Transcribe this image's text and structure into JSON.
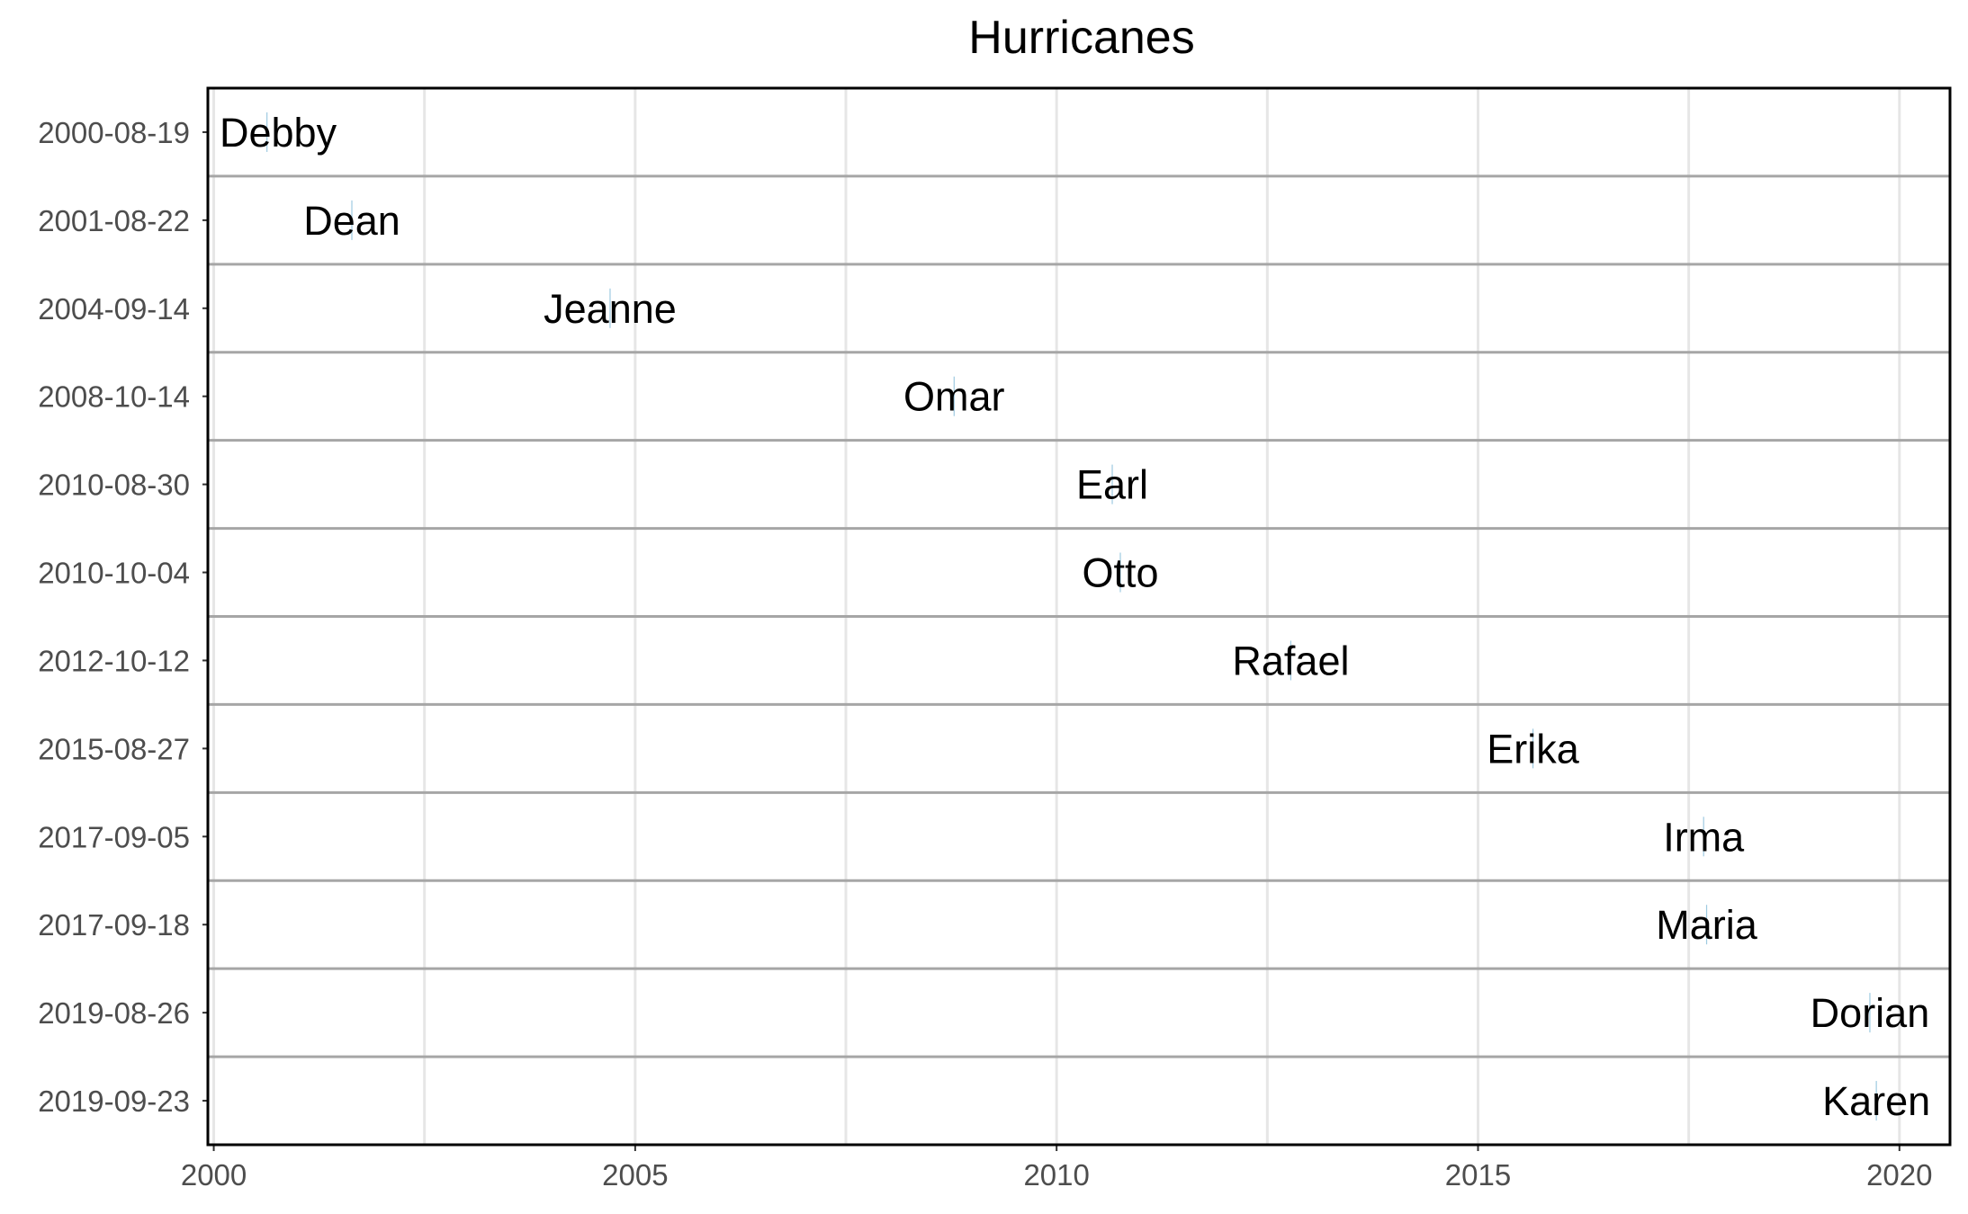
{
  "chart_data": {
    "type": "timeline",
    "title": "Hurricanes",
    "xlabel": "",
    "ylabel": "",
    "xlim": [
      1999.93,
      2020.6
    ],
    "x_ticks": [
      "2000",
      "2005",
      "2010",
      "2015",
      "2020"
    ],
    "grid": true,
    "events": [
      {
        "date": "2000-08-19",
        "name": "Debby"
      },
      {
        "date": "2001-08-22",
        "name": "Dean"
      },
      {
        "date": "2004-09-14",
        "name": "Jeanne"
      },
      {
        "date": "2008-10-14",
        "name": "Omar"
      },
      {
        "date": "2010-08-30",
        "name": "Earl"
      },
      {
        "date": "2010-10-04",
        "name": "Otto"
      },
      {
        "date": "2012-10-12",
        "name": "Rafael"
      },
      {
        "date": "2015-08-27",
        "name": "Erika"
      },
      {
        "date": "2017-09-05",
        "name": "Irma"
      },
      {
        "date": "2017-09-18",
        "name": "Maria"
      },
      {
        "date": "2019-08-26",
        "name": "Dorian"
      },
      {
        "date": "2019-09-23",
        "name": "Karen"
      }
    ],
    "colors": {
      "panel_border": "#000000",
      "grid": "#e6e6e6",
      "separator": "#a6a6a6",
      "tick_text": "#4d4d4d",
      "label_text": "#000000"
    }
  }
}
